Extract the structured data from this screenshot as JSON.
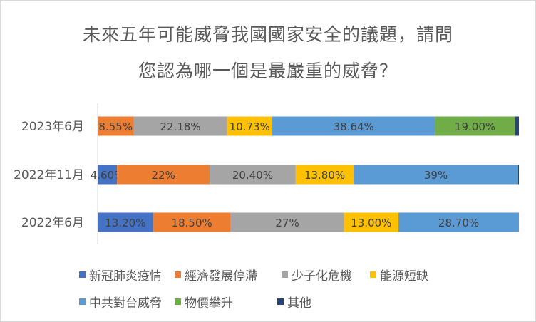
{
  "title_lines": [
    "未來五年可能威脅我國國家安全的議題，請問",
    "您認為哪一個是最嚴重的威脅？"
  ],
  "chart_data": {
    "type": "bar",
    "orientation": "horizontal",
    "stacked": "percent",
    "categories": [
      "2023年6月",
      "2022年11月",
      "2022年6月"
    ],
    "series": [
      {
        "name": "新冠肺炎疫情",
        "color": "#4472c4",
        "values": [
          null,
          4.6,
          13.2
        ],
        "labels": [
          "",
          "4.60%",
          "13.20%"
        ]
      },
      {
        "name": "經濟發展停滯",
        "color": "#ed7d31",
        "values": [
          8.55,
          22.0,
          18.5
        ],
        "labels": [
          "8.55%",
          "22%",
          "18.50%"
        ]
      },
      {
        "name": "少子化危機",
        "color": "#a5a5a5",
        "values": [
          22.18,
          20.4,
          27.0
        ],
        "labels": [
          "22.18%",
          "20.40%",
          "27%"
        ]
      },
      {
        "name": "能源短缺",
        "color": "#ffc000",
        "values": [
          10.73,
          13.8,
          13.0
        ],
        "labels": [
          "10.73%",
          "13.80%",
          "13.00%"
        ]
      },
      {
        "name": "中共對台威脅",
        "color": "#5b9bd5",
        "values": [
          38.64,
          39.0,
          28.7
        ],
        "labels": [
          "38.64%",
          "39%",
          "28.70%"
        ]
      },
      {
        "name": "物價攀升",
        "color": "#70ad47",
        "values": [
          19.0,
          null,
          null
        ],
        "labels": [
          "19.00%",
          "",
          ""
        ]
      },
      {
        "name": "其他",
        "color": "#264478",
        "values": [
          0.9,
          0.2,
          null
        ],
        "labels": [
          "",
          "",
          ""
        ]
      }
    ],
    "legend_position": "bottom",
    "grid": false
  }
}
